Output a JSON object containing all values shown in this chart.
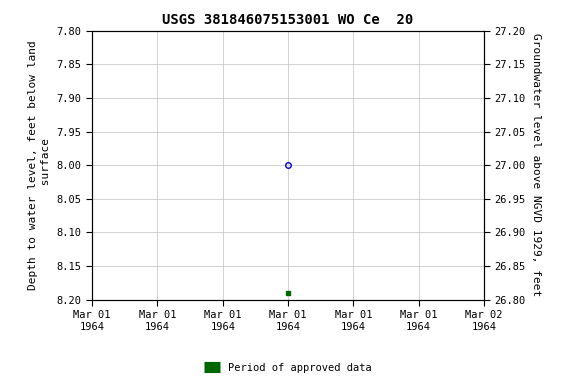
{
  "title": "USGS 381846075153001 WO Ce  20",
  "ylabel_left": "Depth to water level, feet below land\n surface",
  "ylabel_right": "Groundwater level above NGVD 1929, feet",
  "ylim_left": [
    8.2,
    7.8
  ],
  "ylim_right": [
    26.8,
    27.2
  ],
  "yticks_left": [
    7.8,
    7.85,
    7.9,
    7.95,
    8.0,
    8.05,
    8.1,
    8.15,
    8.2
  ],
  "yticks_right": [
    26.8,
    26.85,
    26.9,
    26.95,
    27.0,
    27.05,
    27.1,
    27.15,
    27.2
  ],
  "data_open_x": 3,
  "data_open_y": 8.0,
  "data_filled_x": 3,
  "data_filled_y": 8.19,
  "open_marker_color": "#0000cc",
  "filled_marker_color": "#006600",
  "background_color": "#ffffff",
  "grid_color": "#c0c0c0",
  "legend_label": "Period of approved data",
  "legend_color": "#006600",
  "tick_label_fontsize": 7.5,
  "title_fontsize": 10,
  "ylabel_fontsize": 8,
  "xlim": [
    0,
    6
  ],
  "xtick_positions": [
    0,
    1,
    2,
    3,
    4,
    5,
    6
  ],
  "xtick_labels": [
    "Mar 01\n1964",
    "Mar 01\n1964",
    "Mar 01\n1964",
    "Mar 01\n1964",
    "Mar 01\n1964",
    "Mar 01\n1964",
    "Mar 02\n1964"
  ]
}
